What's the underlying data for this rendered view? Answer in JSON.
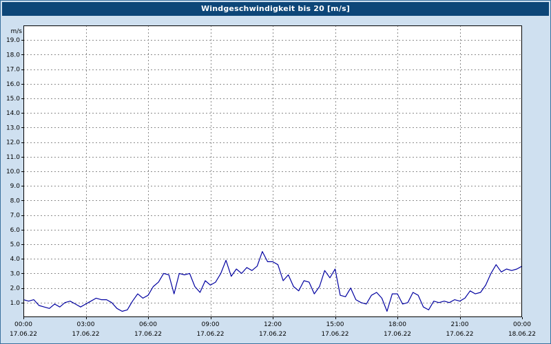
{
  "window": {
    "title": "Windgeschwindigkeit bis 20 [m/s]"
  },
  "colors": {
    "page_bg": "#cfe0f0",
    "titlebar_bg": "#0d4678",
    "titlebar_fg": "#ffffff",
    "plot_bg": "#ffffff",
    "plot_border": "#000000",
    "axis_text": "#000000",
    "line_color": "#0000a0",
    "grid_color": "#8a8a8a"
  },
  "chart_data": {
    "type": "line",
    "title": "Windgeschwindigkeit bis 20 [m/s]",
    "ylabel": "m/s",
    "ylim": [
      0,
      20
    ],
    "ytick_step": 1,
    "ytick_labels": [
      "1.0",
      "2.0",
      "3.0",
      "4.0",
      "5.0",
      "6.0",
      "7.0",
      "8.0",
      "9.0",
      "10.0",
      "11.0",
      "12.0",
      "13.0",
      "14.0",
      "15.0",
      "16.0",
      "17.0",
      "18.0",
      "19.0"
    ],
    "x_total_minutes": 1440,
    "x_start_minute": 0,
    "x_step_minutes": 15,
    "xticks": [
      {
        "time": "00:00",
        "date": "17.06.22"
      },
      {
        "time": "03:00",
        "date": "17.06.22"
      },
      {
        "time": "06:00",
        "date": "17.06.22"
      },
      {
        "time": "09:00",
        "date": "17.06.22"
      },
      {
        "time": "12:00",
        "date": "17.06.22"
      },
      {
        "time": "15:00",
        "date": "17.06.22"
      },
      {
        "time": "18:00",
        "date": "17.06.22"
      },
      {
        "time": "21:00",
        "date": "17.06.22"
      },
      {
        "time": "00:00",
        "date": "18.06.22"
      }
    ],
    "grid": {
      "show": true,
      "color": "#8a8a8a",
      "dash": "2,3"
    },
    "legend": "none",
    "series": [
      {
        "name": "Windgeschwindigkeit",
        "unit": "m/s",
        "color": "#0000a0",
        "values": [
          1.2,
          1.1,
          1.2,
          0.8,
          0.7,
          0.6,
          0.9,
          0.7,
          1.0,
          1.1,
          0.9,
          0.7,
          0.9,
          1.1,
          1.3,
          1.2,
          1.2,
          1.0,
          0.6,
          0.4,
          0.5,
          1.1,
          1.6,
          1.3,
          1.5,
          2.1,
          2.4,
          3.0,
          2.9,
          1.6,
          3.0,
          2.9,
          3.0,
          2.1,
          1.7,
          2.5,
          2.2,
          2.4,
          3.0,
          3.9,
          2.8,
          3.3,
          3.0,
          3.4,
          3.2,
          3.5,
          4.5,
          3.8,
          3.8,
          3.6,
          2.5,
          2.9,
          2.1,
          1.8,
          2.5,
          2.4,
          1.6,
          2.1,
          3.2,
          2.7,
          3.3,
          1.5,
          1.4,
          2.0,
          1.2,
          1.0,
          0.9,
          1.5,
          1.7,
          1.3,
          0.4,
          1.6,
          1.6,
          0.9,
          1.0,
          1.7,
          1.5,
          0.7,
          0.5,
          1.1,
          1.0,
          1.1,
          1.0,
          1.2,
          1.1,
          1.3,
          1.8,
          1.6,
          1.7,
          2.2,
          3.0,
          3.6,
          3.1,
          3.3,
          3.2,
          3.3,
          3.5
        ]
      }
    ]
  }
}
